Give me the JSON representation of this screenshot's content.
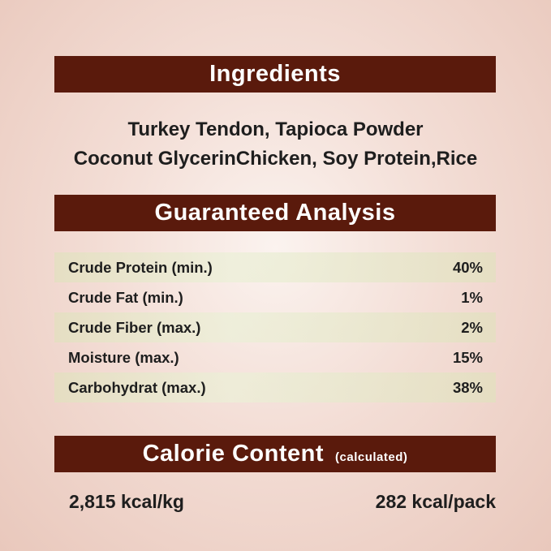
{
  "ingredients": {
    "title": "Ingredients",
    "lines": [
      "Turkey Tendon, Tapioca Powder",
      "Coconut GlycerinChicken, Soy Protein,Rice"
    ]
  },
  "analysis": {
    "title": "Guaranteed Analysis",
    "rows": [
      {
        "label": "Crude Protein (min.)",
        "value": "40%"
      },
      {
        "label": "Crude Fat (min.)",
        "value": "1%"
      },
      {
        "label": "Crude Fiber (max.)",
        "value": "2%"
      },
      {
        "label": "Moisture (max.)",
        "value": "15%"
      },
      {
        "label": "Carbohydrat (max.)",
        "value": "38%"
      }
    ]
  },
  "calorie": {
    "title": "Calorie Content",
    "note": "(calculated)",
    "per_kg": "2,815 kcal/kg",
    "per_pack": "282 kcal/pack"
  },
  "colors": {
    "banner": "#5a1a0c",
    "row_shade": "#e6e6c8"
  }
}
